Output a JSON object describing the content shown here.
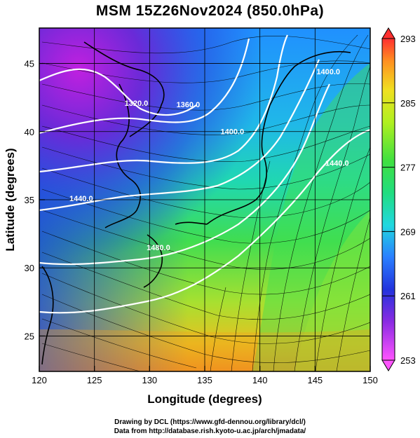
{
  "title": "MSM 15Z26Nov2024 (850.0hPa)",
  "axes": {
    "xlabel": "Longitude (degrees)",
    "ylabel": "Latitude  (degrees)",
    "xticks": [
      120,
      125,
      130,
      135,
      140,
      145,
      150
    ],
    "yticks": [
      25,
      30,
      35,
      40,
      45
    ],
    "xlim": [
      120,
      150
    ],
    "ylim": [
      22.4,
      47.6
    ],
    "grid": true
  },
  "colorbar": {
    "ticks": [
      253,
      261,
      269,
      277,
      285,
      293
    ],
    "range": [
      253,
      293
    ]
  },
  "contours": [
    {
      "label": "1320.0",
      "lon": 128.8,
      "lat": 41.9
    },
    {
      "label": "1360.0",
      "lon": 133.5,
      "lat": 41.8
    },
    {
      "label": "1400.0",
      "lon": 137.5,
      "lat": 39.8
    },
    {
      "label": "1440.0",
      "lon": 123.8,
      "lat": 34.9
    },
    {
      "label": "1480.0",
      "lon": 130.8,
      "lat": 31.3
    },
    {
      "label": "1400.0",
      "lon": 146.2,
      "lat": 44.2
    },
    {
      "label": "1440.0",
      "lon": 147.0,
      "lat": 37.5
    }
  ],
  "credits": {
    "line1": "Drawing by DCL (https://www.gfd-dennou.org/library/dcl/)",
    "line2": "Data from http://database.rish.kyoto-u.ac.jp/arch/jmadata/"
  }
}
